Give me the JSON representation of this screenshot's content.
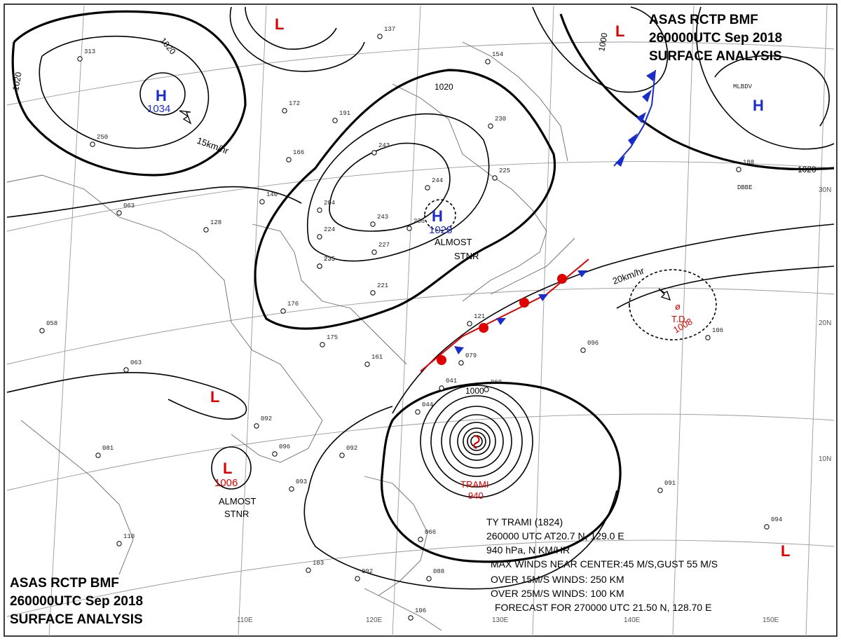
{
  "header_top": {
    "line1": "ASAS    RCTP    BMF",
    "line2": "260000UTC    Sep    2018",
    "line3": "SURFACE  ANALYSIS"
  },
  "header_bottom": {
    "line1": "ASAS    RCTP    BMF",
    "line2": "260000UTC    Sep    2018",
    "line3": "SURFACE  ANALYSIS"
  },
  "lat_labels": [
    "30N",
    "20N",
    "10N"
  ],
  "lon_labels": [
    "110E",
    "120E",
    "130E",
    "140E",
    "150E"
  ],
  "isobar_labels": [
    "1020",
    "1020",
    "1020",
    "1000",
    "1020",
    "1000"
  ],
  "pressure_systems": [
    {
      "symbol": "H",
      "value": "1034",
      "color": "#1a2dcc"
    },
    {
      "symbol": "H",
      "value": "1028",
      "color": "#1a2dcc"
    },
    {
      "symbol": "H",
      "value": "",
      "color": "#1a2dcc"
    },
    {
      "symbol": "L",
      "value": "",
      "color": "#e00000"
    },
    {
      "symbol": "L",
      "value": "",
      "color": "#e00000"
    },
    {
      "symbol": "L",
      "value": "",
      "color": "#e00000"
    },
    {
      "symbol": "L",
      "value": "1006",
      "color": "#e00000"
    },
    {
      "symbol": "L",
      "value": "",
      "color": "#e00000"
    }
  ],
  "notes": {
    "almost_stnr_1_a": "ALMOST",
    "almost_stnr_1_b": "STNR",
    "almost_stnr_2_a": "ALMOST",
    "almost_stnr_2_b": "STNR",
    "movement_1": "15km/hr",
    "movement_2": "20km/hr"
  },
  "td": {
    "name": "T.D.",
    "pressure": "1008"
  },
  "typhoon": {
    "name": "TRAMI",
    "pressure": "940"
  },
  "typhoon_info": {
    "l1": "TY  TRAMI  (1824)",
    "l2": "260000 UTC  AT20.7 N, 129.0 E",
    "l3": "940 hPa, N   KM/HR",
    "l4": "MAX WINDS NEAR CENTER:45 M/S,GUST 55 M/S",
    "l5": "OVER 15M/S WINDS: 250 KM",
    "l6": "OVER 25M/S WINDS: 100 KM",
    "l7": "FORECAST FOR 270000 UTC  21.50 N, 128.70 E"
  },
  "station_numbers": [
    "137",
    "154",
    "191",
    "172",
    "166",
    "235",
    "243",
    "230",
    "244",
    "243",
    "236",
    "225",
    "204",
    "224",
    "235",
    "227",
    "221",
    "175",
    "176",
    "161",
    "128",
    "140",
    "250",
    "063",
    "058",
    "063",
    "081",
    "092",
    "096",
    "093",
    "092",
    "044",
    "041",
    "060",
    "121",
    "079",
    "110",
    "103",
    "092",
    "066",
    "088",
    "106",
    "091",
    "094",
    "096",
    "106",
    "188",
    "313"
  ],
  "station_ids": [
    "MLBDV",
    "DBBE"
  ],
  "colors": {
    "high": "#1a2dcc",
    "low": "#e00000",
    "isobar": "#000000",
    "grid": "#9a9a9a"
  }
}
